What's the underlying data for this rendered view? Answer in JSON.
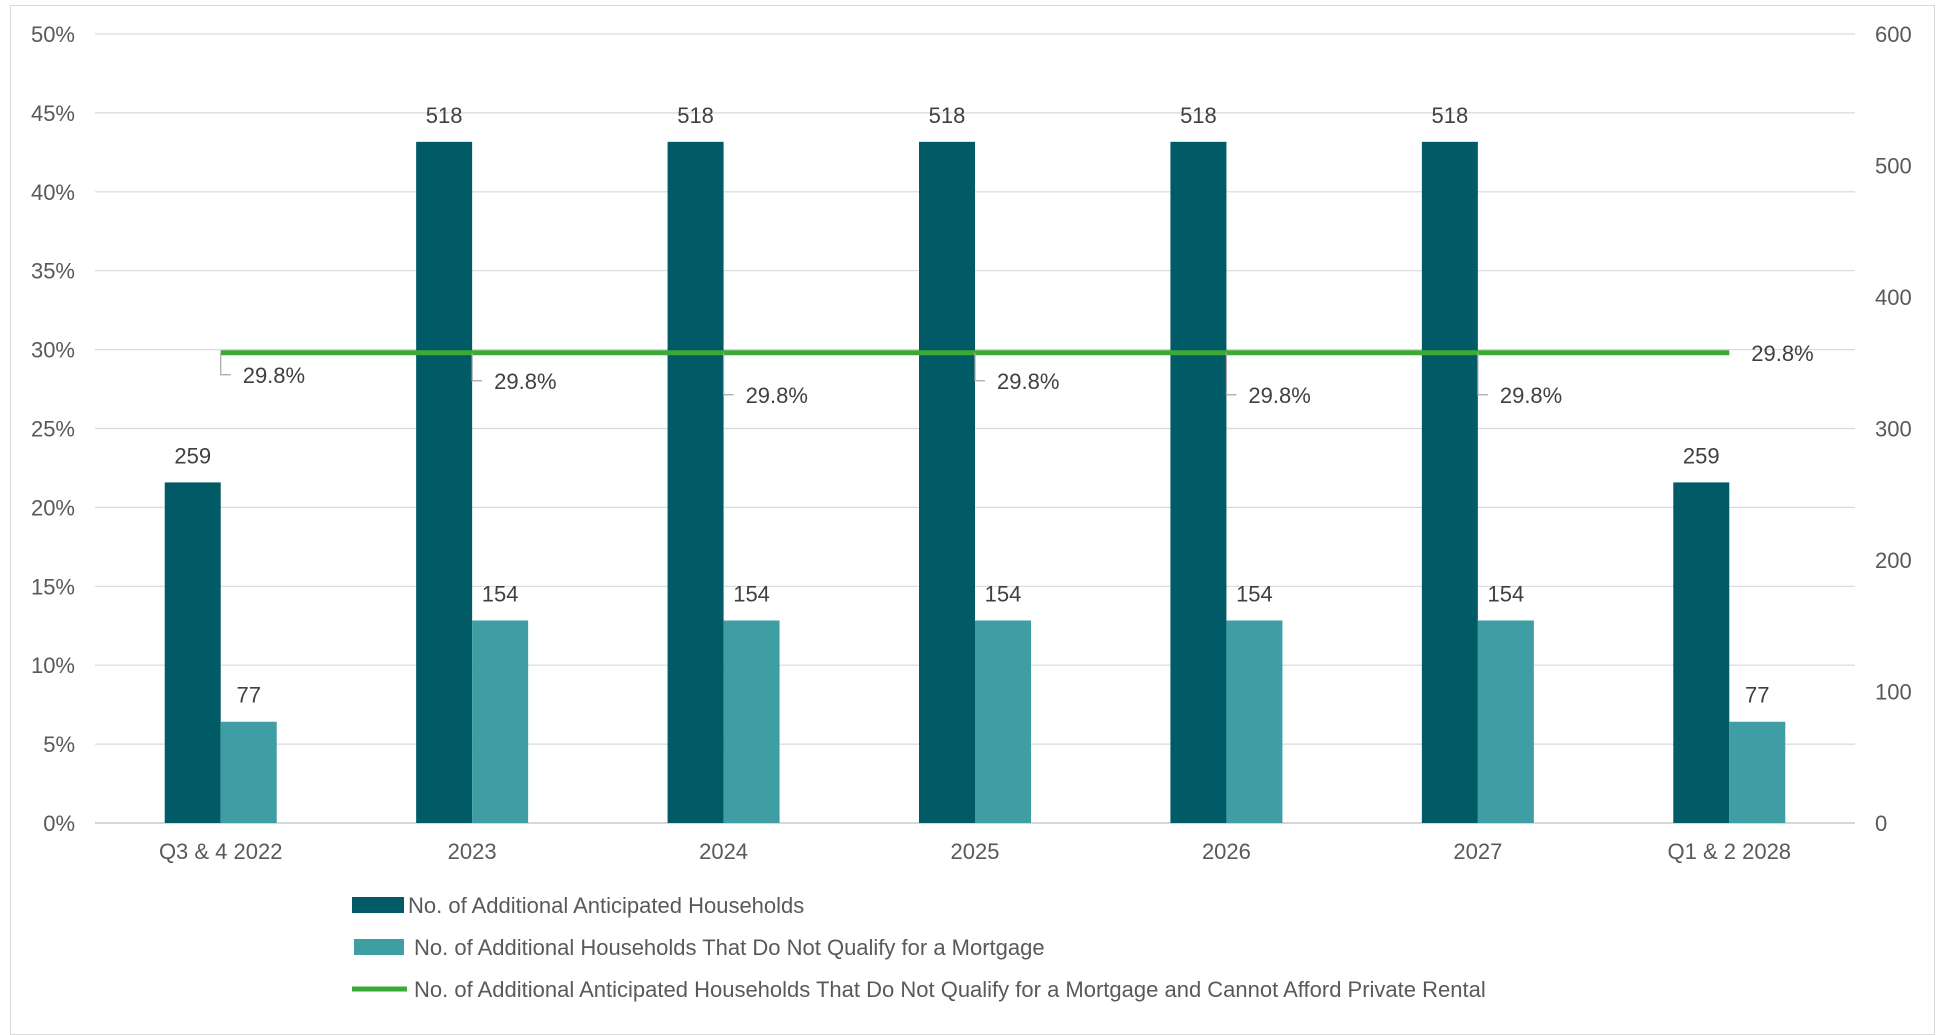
{
  "chart_data": {
    "type": "bar",
    "categories": [
      "Q3 & 4 2022",
      "2023",
      "2024",
      "2025",
      "2026",
      "2027",
      "Q1 & 2 2028"
    ],
    "series": [
      {
        "name": "No. of Additional Anticipated Households",
        "type": "bar",
        "axis": "right",
        "color": "#005b66",
        "values": [
          259,
          518,
          518,
          518,
          518,
          518,
          259
        ],
        "data_labels": [
          "259",
          "518",
          "518",
          "518",
          "518",
          "518",
          "259"
        ]
      },
      {
        "name": "No. of Additional Households That Do Not Qualify for a Mortgage",
        "type": "bar",
        "axis": "right",
        "color": "#3f9ea3",
        "values": [
          77,
          154,
          154,
          154,
          154,
          154,
          77
        ],
        "data_labels": [
          "77",
          "154",
          "154",
          "154",
          "154",
          "154",
          "77"
        ]
      },
      {
        "name": "No. of Additional Anticipated Households That Do Not Qualify for a Mortgage  and Cannot Afford Private Rental",
        "type": "line",
        "axis": "left",
        "color": "#3aaa35",
        "values": [
          29.8,
          29.8,
          29.8,
          29.8,
          29.8,
          29.8,
          29.8
        ],
        "data_labels": [
          "29.8%",
          "29.8%",
          "29.8%",
          "29.8%",
          "29.8%",
          "29.8%",
          "29.8%"
        ]
      }
    ],
    "y_left": {
      "range": [
        0,
        50
      ],
      "ticks": [
        0,
        5,
        10,
        15,
        20,
        25,
        30,
        35,
        40,
        45,
        50
      ],
      "tick_labels": [
        "0%",
        "5%",
        "10%",
        "15%",
        "20%",
        "25%",
        "30%",
        "35%",
        "40%",
        "45%",
        "50%"
      ]
    },
    "y_right": {
      "range": [
        0,
        600
      ],
      "ticks": [
        0,
        100,
        200,
        300,
        400,
        500,
        600
      ],
      "tick_labels": [
        "0",
        "100",
        "200",
        "300",
        "400",
        "500",
        "600"
      ]
    },
    "grid": true,
    "legend_position": "bottom",
    "title": "",
    "xlabel": "",
    "ylabel": ""
  }
}
